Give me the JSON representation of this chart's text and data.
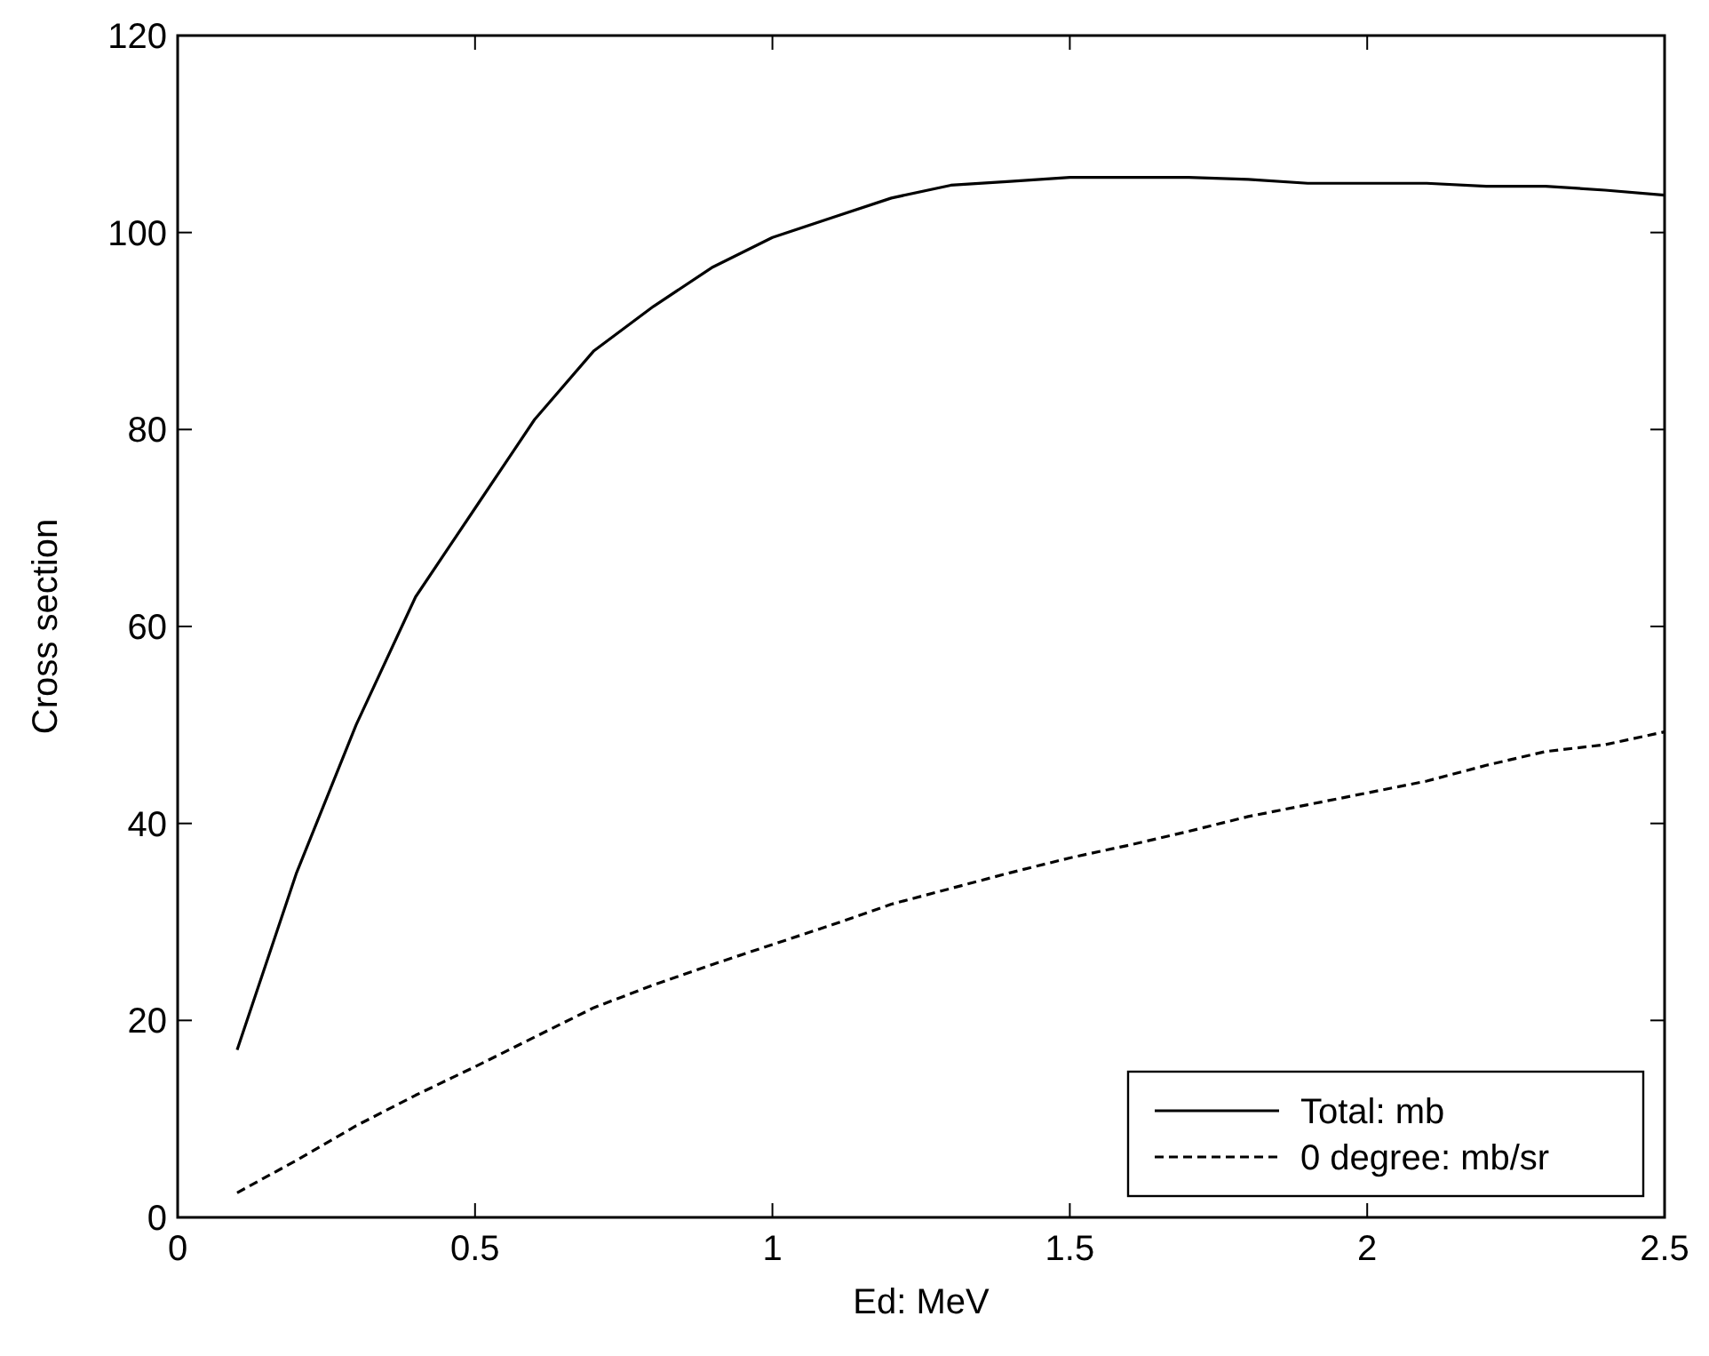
{
  "chart_data": {
    "type": "line",
    "xlabel": "Ed: MeV",
    "ylabel": "Cross section",
    "x": [
      0.1,
      0.2,
      0.3,
      0.4,
      0.5,
      0.6,
      0.7,
      0.8,
      0.9,
      1.0,
      1.1,
      1.2,
      1.3,
      1.4,
      1.5,
      1.6,
      1.7,
      1.8,
      1.9,
      2.0,
      2.1,
      2.2,
      2.3,
      2.4,
      2.5
    ],
    "series": [
      {
        "name": "Total: mb",
        "color": "#000000",
        "line_style": "solid",
        "values": [
          17,
          35,
          50,
          63,
          72,
          81,
          88,
          92.5,
          96.5,
          99.5,
          101.5,
          103.5,
          104.8,
          105.2,
          105.6,
          105.6,
          105.6,
          105.4,
          105,
          105,
          105,
          104.7,
          104.7,
          104.3,
          103.8
        ]
      },
      {
        "name": "0 degree: mb/sr",
        "color": "#000000",
        "line_style": "dashed",
        "values": [
          2.5,
          5.8,
          9.3,
          12.4,
          15.3,
          18.3,
          21.3,
          23.6,
          25.7,
          27.7,
          29.7,
          31.8,
          33.4,
          35,
          36.5,
          37.8,
          39.2,
          40.7,
          41.9,
          43.1,
          44.3,
          45.9,
          47.3,
          48,
          49.3
        ]
      }
    ],
    "xlim": [
      0,
      2.5
    ],
    "xticks": [
      0,
      0.5,
      1,
      1.5,
      2,
      2.5
    ],
    "ylim": [
      0,
      120
    ],
    "yticks": [
      0,
      20,
      40,
      60,
      80,
      100,
      120
    ],
    "legend": "bottom right",
    "marker": "none"
  }
}
